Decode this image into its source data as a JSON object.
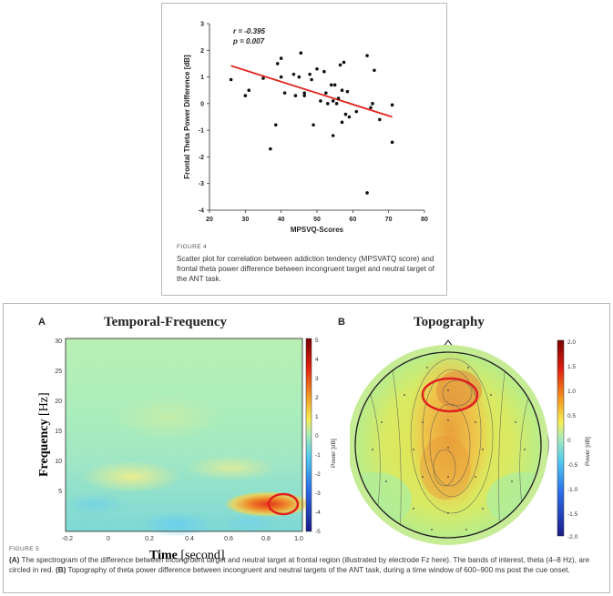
{
  "figure4": {
    "label": "FIGURE 4",
    "caption": "Scatter plot for correlation between addiction tendency (MPSVATQ score) and frontal theta power difference between incongruent target and neutral target of the ANT task."
  },
  "figure5": {
    "label": "FIGURE 5",
    "caption_parts": [
      "(A)",
      " The spectrogram of the difference between incongruent target and neutral target at frontal region (illustrated by electrode Fz here). The bands of interest, theta (4–8 Hz), are circled in red. ",
      "(B)",
      " Topography of theta power difference between incongruent and neutral targets of the ANT task, during a time window of 600–900 ms post the cue onset."
    ],
    "panel_a": {
      "letter": "A",
      "title": "Temporal-Frequency",
      "ylabel_main": "Frequency",
      "ylabel_unit": " [Hz]",
      "xlabel_main": "Time",
      "xlabel_unit": " [second]",
      "x_ticks": [
        "-0.2",
        "0",
        "0.2",
        "0.4",
        "0.6",
        "0.8",
        "1.0"
      ],
      "y_ticks": [
        "30",
        "25",
        "20",
        "15",
        "10",
        "5"
      ],
      "colorbar_ticks": [
        "5",
        "4",
        "3",
        "2",
        "1",
        "0",
        "-1",
        "-2",
        "-3",
        "-4",
        "-5"
      ],
      "colorbar_label": "Power [dB]"
    },
    "panel_b": {
      "letter": "B",
      "title": "Topography",
      "colorbar_ticks": [
        "2.0",
        "1.5",
        "1.0",
        "0.5",
        "0",
        "-0.5",
        "-1.0",
        "-1.5",
        "-2.0"
      ],
      "colorbar_label": "Power [dB]"
    }
  },
  "chart_data": {
    "type": "scatter",
    "title": "",
    "xlabel": "MPSVQ-Scores",
    "ylabel": "Frontal Theta Power Difference [dB]",
    "xlim": [
      20,
      80
    ],
    "ylim": [
      -4,
      3
    ],
    "x_ticks": [
      20,
      30,
      40,
      50,
      60,
      70,
      80
    ],
    "y_ticks": [
      3,
      2,
      1,
      0,
      -1,
      -2,
      -3,
      -4
    ],
    "grid": false,
    "annotations": [
      "r = -0.395",
      "p = 0.007"
    ],
    "points": [
      [
        26,
        0.9
      ],
      [
        30,
        0.3
      ],
      [
        31,
        0.5
      ],
      [
        35,
        0.95
      ],
      [
        37,
        -1.7
      ],
      [
        38.5,
        -0.8
      ],
      [
        39,
        1.5
      ],
      [
        40,
        1.7
      ],
      [
        40,
        1.0
      ],
      [
        41,
        0.4
      ],
      [
        43.5,
        1.1
      ],
      [
        44,
        0.3
      ],
      [
        45,
        1.0
      ],
      [
        45.5,
        1.9
      ],
      [
        46.5,
        0.4
      ],
      [
        46.5,
        0.3
      ],
      [
        48,
        1.1
      ],
      [
        48.5,
        0.9
      ],
      [
        49,
        -0.8
      ],
      [
        50,
        1.3
      ],
      [
        51,
        0.1
      ],
      [
        52,
        1.2
      ],
      [
        52.5,
        0.4
      ],
      [
        53,
        0.0
      ],
      [
        54,
        0.7
      ],
      [
        54.5,
        0.1
      ],
      [
        54.5,
        -1.2
      ],
      [
        55,
        0.7
      ],
      [
        55.5,
        0.0
      ],
      [
        56,
        0.2
      ],
      [
        56.5,
        1.45
      ],
      [
        57,
        0.5
      ],
      [
        57,
        -0.7
      ],
      [
        57.5,
        1.55
      ],
      [
        58,
        -0.4
      ],
      [
        58.5,
        0.45
      ],
      [
        59,
        -0.5
      ],
      [
        61,
        -0.3
      ],
      [
        64,
        1.8
      ],
      [
        64,
        -3.35
      ],
      [
        65,
        -0.15
      ],
      [
        65.5,
        0.0
      ],
      [
        66,
        1.25
      ],
      [
        67.5,
        -0.6
      ],
      [
        71,
        -0.05
      ],
      [
        71,
        -1.45
      ]
    ],
    "regression_line": {
      "x": [
        26,
        71
      ],
      "y": [
        1.42,
        -0.5
      ]
    }
  }
}
